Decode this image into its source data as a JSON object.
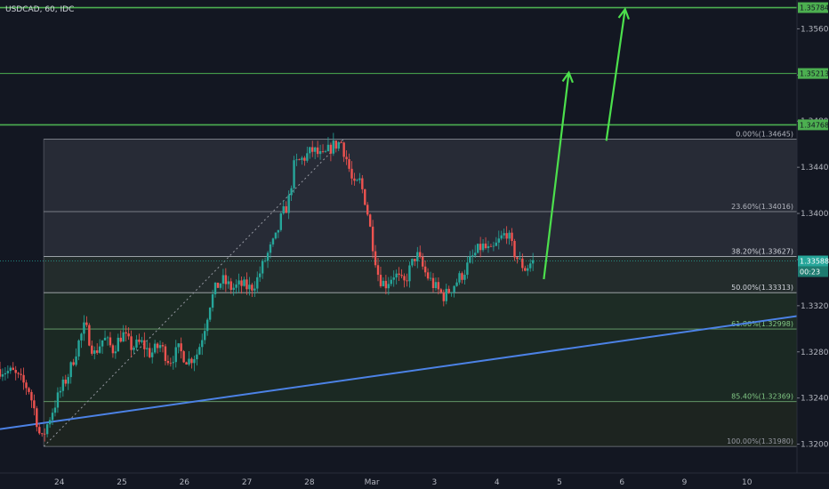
{
  "chart_data": {
    "type": "candlestick",
    "title": "USDCAD, 60, IDC",
    "colors": {
      "background": "#131722",
      "up": "#26a69a",
      "down": "#ef5350",
      "resistance": "#4caf50",
      "trendline": "#2962ff",
      "fib_line": "#b2b5be",
      "arrow": "#4caf50"
    },
    "ylim": [
      1.3175,
      1.3585
    ],
    "yticks": [
      1.32,
      1.324,
      1.328,
      1.332,
      1.336,
      1.34,
      1.344,
      1.348,
      1.352,
      1.356
    ],
    "ytick_labels": [
      "1.32000",
      "1.32400",
      "1.32800",
      "1.33200",
      "1.33600",
      "1.34000",
      "1.34400",
      "1.34800",
      "1.35200",
      "1.35600"
    ],
    "x_axis": {
      "ticks": [
        {
          "label": "24",
          "pos": 24.4
        },
        {
          "label": "25",
          "pos": 25.4
        },
        {
          "label": "26",
          "pos": 26.4
        },
        {
          "label": "27",
          "pos": 27.4
        },
        {
          "label": "28",
          "pos": 28.4
        },
        {
          "label": "Mar",
          "pos": 29.4
        },
        {
          "label": "3",
          "pos": 30.4
        },
        {
          "label": "4",
          "pos": 31.4
        },
        {
          "label": "5",
          "pos": 32.4
        },
        {
          "label": "6",
          "pos": 33.4
        },
        {
          "label": "9",
          "pos": 34.4
        },
        {
          "label": "10",
          "pos": 35.4
        }
      ],
      "range": [
        23.45,
        36.2
      ]
    },
    "resistance_levels": [
      {
        "value": 1.35784,
        "label": "1.35784"
      },
      {
        "value": 1.35213,
        "label": "1.35213"
      },
      {
        "value": 1.34768,
        "label": "1.34768"
      }
    ],
    "current_price": {
      "value": 1.33588,
      "label": "1.33588",
      "countdown": "00:23"
    },
    "fibonacci": {
      "x_start": 24.15,
      "x_end": 36.2,
      "levels": [
        {
          "ratio": "0.00%",
          "price": 1.34645,
          "label": "0.00%(1.34645)",
          "color": "#b2b5be"
        },
        {
          "ratio": "23.60%",
          "price": 1.34016,
          "label": "23.60%(1.34016)",
          "color": "#b2b5be"
        },
        {
          "ratio": "38.20%",
          "price": 1.33627,
          "label": "38.20%(1.33627)",
          "color": "#d1d4dc"
        },
        {
          "ratio": "50.00%",
          "price": 1.33313,
          "label": "50.00%(1.33313)",
          "color": "#d1d4dc"
        },
        {
          "ratio": "61.80%",
          "price": 1.32998,
          "label": "61.80%(1.32998)",
          "color": "#81c784"
        },
        {
          "ratio": "85.40%",
          "price": 1.32369,
          "label": "85.40%(1.32369)",
          "color": "#81c784"
        },
        {
          "ratio": "100.00%",
          "price": 1.3198,
          "label": "100.00%(1.31980)",
          "color": "#9598a1"
        }
      ]
    },
    "fib_anchor_line": {
      "from": [
        24.15,
        1.3198
      ],
      "to": [
        28.95,
        1.34645
      ]
    },
    "trendline": {
      "from": [
        23.45,
        1.3213
      ],
      "to": [
        36.2,
        1.3311
      ]
    },
    "arrows": [
      {
        "from": [
          32.15,
          1.3343
        ],
        "to": [
          32.55,
          1.3522
        ]
      },
      {
        "from": [
          33.15,
          1.3463
        ],
        "to": [
          33.45,
          1.3577
        ]
      }
    ],
    "price_path": [
      [
        23.45,
        1.3265
      ],
      [
        23.7,
        1.3262
      ],
      [
        23.95,
        1.3248
      ],
      [
        24.05,
        1.3228
      ],
      [
        24.15,
        1.3202
      ],
      [
        24.3,
        1.3225
      ],
      [
        24.45,
        1.3245
      ],
      [
        24.6,
        1.3262
      ],
      [
        24.75,
        1.3288
      ],
      [
        24.85,
        1.3303
      ],
      [
        25.0,
        1.3278
      ],
      [
        25.15,
        1.3292
      ],
      [
        25.3,
        1.3282
      ],
      [
        25.45,
        1.3296
      ],
      [
        25.6,
        1.3284
      ],
      [
        25.75,
        1.3288
      ],
      [
        25.9,
        1.3278
      ],
      [
        26.05,
        1.3286
      ],
      [
        26.2,
        1.3272
      ],
      [
        26.35,
        1.3282
      ],
      [
        26.5,
        1.3272
      ],
      [
        26.65,
        1.3279
      ],
      [
        26.75,
        1.3298
      ],
      [
        26.85,
        1.3322
      ],
      [
        26.95,
        1.3336
      ],
      [
        27.05,
        1.3342
      ],
      [
        27.2,
        1.3335
      ],
      [
        27.35,
        1.3338
      ],
      [
        27.5,
        1.3335
      ],
      [
        27.6,
        1.3342
      ],
      [
        27.75,
        1.3362
      ],
      [
        27.9,
        1.3378
      ],
      [
        28.0,
        1.3398
      ],
      [
        28.1,
        1.3408
      ],
      [
        28.2,
        1.3442
      ],
      [
        28.35,
        1.3448
      ],
      [
        28.5,
        1.3455
      ],
      [
        28.65,
        1.3448
      ],
      [
        28.8,
        1.3458
      ],
      [
        28.95,
        1.3462
      ],
      [
        29.05,
        1.3445
      ],
      [
        29.15,
        1.3422
      ],
      [
        29.25,
        1.3428
      ],
      [
        29.35,
        1.3408
      ],
      [
        29.45,
        1.3375
      ],
      [
        29.55,
        1.3345
      ],
      [
        29.65,
        1.3338
      ],
      [
        29.8,
        1.3348
      ],
      [
        29.95,
        1.3338
      ],
      [
        30.05,
        1.3352
      ],
      [
        30.15,
        1.3365
      ],
      [
        30.3,
        1.3348
      ],
      [
        30.45,
        1.3336
      ],
      [
        30.6,
        1.3328
      ],
      [
        30.75,
        1.3338
      ],
      [
        30.9,
        1.3348
      ],
      [
        31.05,
        1.3362
      ],
      [
        31.2,
        1.3372
      ],
      [
        31.35,
        1.3366
      ],
      [
        31.5,
        1.3378
      ],
      [
        31.6,
        1.3384
      ],
      [
        31.7,
        1.3368
      ],
      [
        31.8,
        1.3358
      ],
      [
        31.9,
        1.3352
      ],
      [
        32.0,
        1.3358
      ]
    ]
  }
}
